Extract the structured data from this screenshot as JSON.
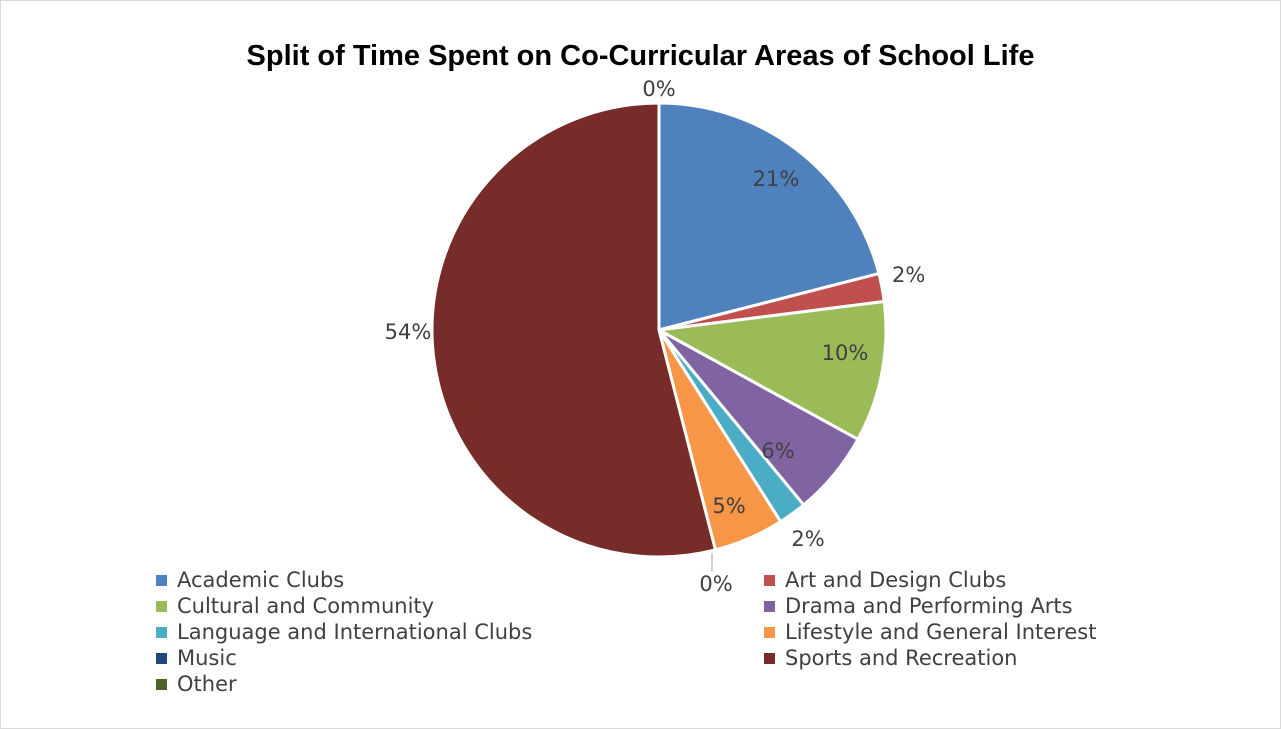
{
  "chart_data": {
    "type": "pie",
    "title": "Split of Time Spent on Co-Curricular Areas of School Life",
    "legend_position": "bottom",
    "slices": [
      {
        "label": "Academic Clubs",
        "value": 21,
        "display": "21%",
        "color": "#4f81bd"
      },
      {
        "label": "Art and Design Clubs",
        "value": 2,
        "display": "2%",
        "color": "#c0504d"
      },
      {
        "label": "Cultural and Community",
        "value": 10,
        "display": "10%",
        "color": "#9bbb59"
      },
      {
        "label": "Drama and Performing Arts",
        "value": 6,
        "display": "6%",
        "color": "#8064a2"
      },
      {
        "label": "Language and International Clubs",
        "value": 2,
        "display": "2%",
        "color": "#4bacc6"
      },
      {
        "label": "Lifestyle and General Interest",
        "value": 5,
        "display": "5%",
        "color": "#f79646"
      },
      {
        "label": "Music",
        "value": 0,
        "display": "0%",
        "color": "#1f497d"
      },
      {
        "label": "Sports and Recreation",
        "value": 54,
        "display": "54%",
        "color": "#772c2a"
      },
      {
        "label": "Other",
        "value": 0,
        "display": "0%",
        "color": "#4f6228"
      }
    ]
  }
}
